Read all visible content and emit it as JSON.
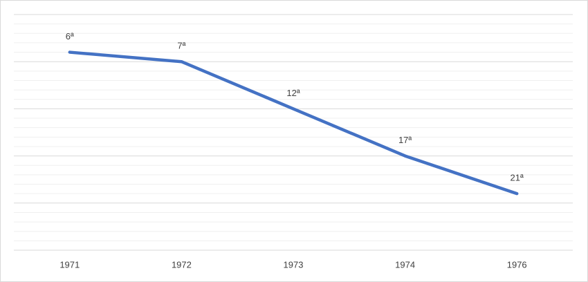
{
  "chart_data": {
    "type": "line",
    "categories": [
      "1971",
      "1972",
      "1973",
      "1974",
      "1976"
    ],
    "series": [
      {
        "color": "#4472c4",
        "values": [
          6,
          7,
          12,
          17,
          21
        ],
        "value_labels": [
          "6ª",
          "7ª",
          "12ª",
          "17ª",
          "21ª"
        ]
      }
    ],
    "ylim": [
      2,
      27
    ],
    "y_inverted": true,
    "yticks": [
      2,
      7,
      12,
      17,
      22,
      27
    ],
    "minor_yticks": [
      3,
      4,
      5,
      6,
      8,
      9,
      10,
      11,
      13,
      14,
      15,
      16,
      18,
      19,
      20,
      21,
      23,
      24,
      25,
      26
    ],
    "grid": true
  }
}
